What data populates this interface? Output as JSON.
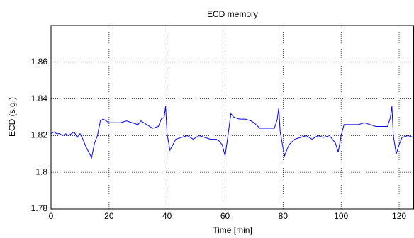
{
  "chart_data": {
    "type": "line",
    "title": "ECD memory",
    "x_label": "Time [min]",
    "y_label": "ECD (s.g.)",
    "x": [
      0,
      1,
      2,
      3,
      4,
      5,
      6,
      7,
      8,
      9,
      10,
      11,
      12,
      13,
      14,
      15,
      16,
      17,
      18,
      20,
      22,
      24,
      26,
      28,
      30,
      31,
      33,
      35,
      37,
      38,
      39,
      39.5,
      40,
      41,
      42,
      43,
      45,
      47,
      49,
      51,
      53,
      55,
      57,
      58,
      59,
      60,
      61,
      62,
      63,
      65,
      67,
      69,
      70,
      72,
      74,
      76,
      77,
      78,
      78.5,
      79,
      80,
      80.5,
      82,
      84,
      86,
      88,
      90,
      92,
      94,
      96,
      97,
      98,
      99,
      100,
      101,
      102,
      104,
      106,
      108,
      110,
      112,
      114,
      116,
      117,
      117.5,
      118,
      119,
      120,
      121,
      123,
      125
    ],
    "series": [
      {
        "color": "#0000ff",
        "values": [
          1.821,
          1.822,
          1.821,
          1.821,
          1.82,
          1.821,
          1.82,
          1.821,
          1.822,
          1.819,
          1.821,
          1.818,
          1.814,
          1.811,
          1.808,
          1.816,
          1.82,
          1.828,
          1.829,
          1.827,
          1.827,
          1.827,
          1.828,
          1.827,
          1.826,
          1.828,
          1.826,
          1.824,
          1.825,
          1.829,
          1.83,
          1.836,
          1.821,
          1.812,
          1.815,
          1.818,
          1.819,
          1.82,
          1.818,
          1.82,
          1.819,
          1.818,
          1.818,
          1.817,
          1.815,
          1.809,
          1.82,
          1.832,
          1.83,
          1.829,
          1.829,
          1.828,
          1.827,
          1.824,
          1.824,
          1.824,
          1.824,
          1.829,
          1.835,
          1.822,
          1.813,
          1.809,
          1.815,
          1.818,
          1.819,
          1.82,
          1.818,
          1.82,
          1.819,
          1.82,
          1.818,
          1.816,
          1.811,
          1.82,
          1.826,
          1.826,
          1.826,
          1.826,
          1.827,
          1.826,
          1.825,
          1.825,
          1.825,
          1.83,
          1.836,
          1.82,
          1.81,
          1.815,
          1.819,
          1.82,
          1.819
        ]
      }
    ],
    "xlim": [
      0,
      125
    ],
    "xticks": [
      0,
      20,
      40,
      60,
      80,
      100,
      120
    ],
    "ylim": [
      1.78,
      1.88
    ],
    "yticks": [
      1.78,
      1.8,
      1.82,
      1.84,
      1.86
    ],
    "grid": true
  }
}
